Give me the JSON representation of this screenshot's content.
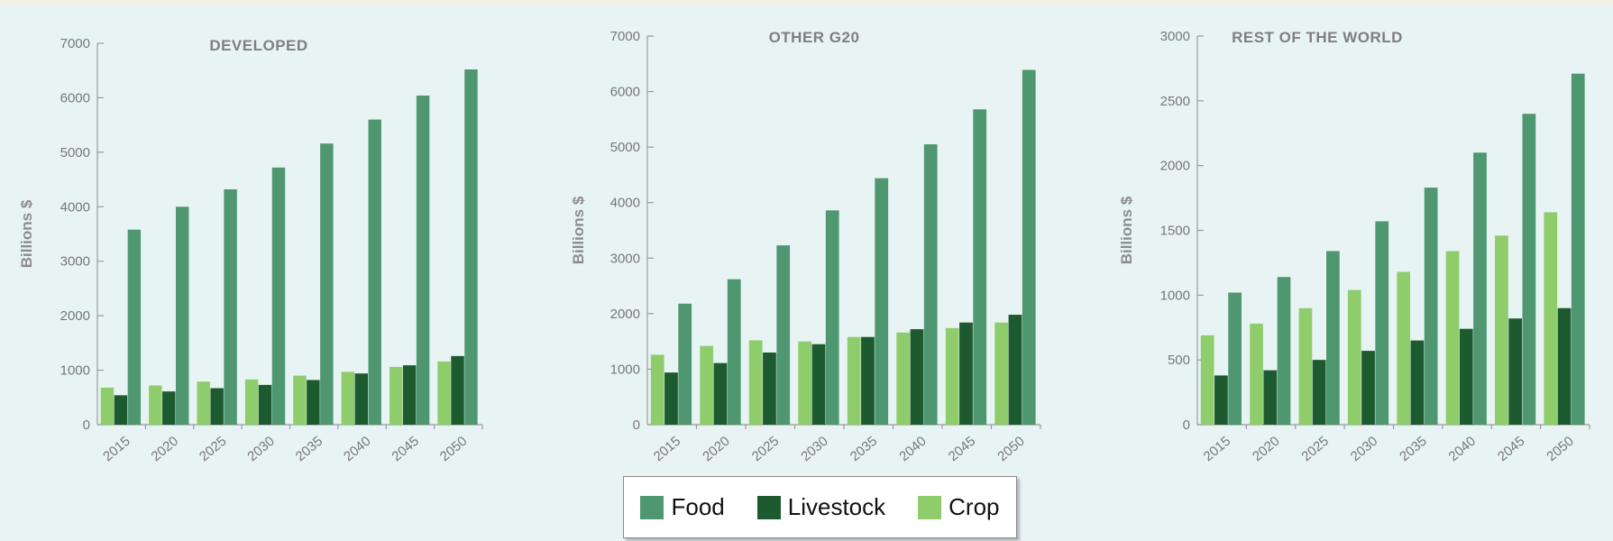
{
  "colors": {
    "food": "#4f9770",
    "livestock": "#1d5a30",
    "crop": "#8fcc6c"
  },
  "legend": {
    "food": "Food",
    "livestock": "Livestock",
    "crop": "Crop"
  },
  "chart_data": [
    {
      "type": "bar",
      "title": "DEVELOPED",
      "ylabel": "Billions $",
      "ylim": [
        0,
        7000
      ],
      "yticks": [
        0,
        1000,
        2000,
        3000,
        4000,
        5000,
        6000,
        7000
      ],
      "categories": [
        "2015",
        "2020",
        "2025",
        "2030",
        "2035",
        "2040",
        "2045",
        "2050"
      ],
      "series": [
        {
          "name": "Crop",
          "values": [
            680,
            720,
            790,
            830,
            900,
            970,
            1060,
            1160
          ]
        },
        {
          "name": "Livestock",
          "values": [
            540,
            610,
            670,
            730,
            820,
            940,
            1090,
            1260
          ]
        },
        {
          "name": "Food",
          "values": [
            3580,
            4000,
            4320,
            4720,
            5160,
            5600,
            6040,
            6520
          ]
        }
      ]
    },
    {
      "type": "bar",
      "title": "OTHER G20",
      "ylabel": "Billions $",
      "ylim": [
        0,
        7000
      ],
      "yticks": [
        0,
        1000,
        2000,
        3000,
        4000,
        5000,
        6000,
        7000
      ],
      "categories": [
        "2015",
        "2020",
        "2025",
        "2030",
        "2035",
        "2040",
        "2045",
        "2050"
      ],
      "series": [
        {
          "name": "Crop",
          "values": [
            1260,
            1420,
            1520,
            1500,
            1580,
            1660,
            1740,
            1840
          ]
        },
        {
          "name": "Livestock",
          "values": [
            940,
            1110,
            1300,
            1450,
            1580,
            1720,
            1840,
            1980
          ]
        },
        {
          "name": "Food",
          "values": [
            2180,
            2620,
            3230,
            3860,
            4440,
            5050,
            5680,
            6390
          ]
        }
      ]
    },
    {
      "type": "bar",
      "title": "REST OF THE WORLD",
      "ylabel": "Billions $",
      "ylim": [
        0,
        3000
      ],
      "yticks": [
        0,
        500,
        1000,
        1500,
        2000,
        2500,
        3000
      ],
      "categories": [
        "2015",
        "2020",
        "2025",
        "2030",
        "2035",
        "2040",
        "2045",
        "2050"
      ],
      "series": [
        {
          "name": "Crop",
          "values": [
            690,
            780,
            900,
            1040,
            1180,
            1340,
            1460,
            1640
          ]
        },
        {
          "name": "Livestock",
          "values": [
            380,
            420,
            500,
            570,
            650,
            740,
            820,
            900
          ]
        },
        {
          "name": "Food",
          "values": [
            1020,
            1140,
            1340,
            1570,
            1830,
            2100,
            2400,
            2710
          ]
        }
      ]
    }
  ]
}
